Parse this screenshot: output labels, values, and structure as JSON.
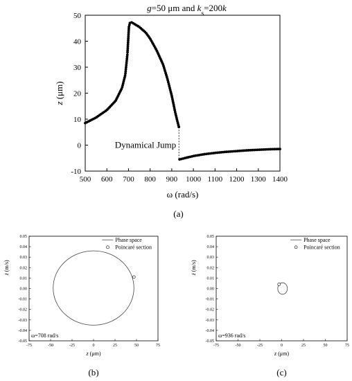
{
  "chart_data": [
    {
      "type": "scatter",
      "title_parts": [
        {
          "text": "g",
          "italic": true
        },
        {
          "text": "=50 μm and ",
          "italic": false
        },
        {
          "text": "k",
          "italic": true
        },
        {
          "text": "s",
          "italic": false,
          "sub": true
        },
        {
          "text": "=200",
          "italic": false
        },
        {
          "text": "k",
          "italic": true
        }
      ],
      "xlabel": "ω (rad/s)",
      "ylabel_parts": [
        {
          "text": "z",
          "italic": true
        },
        {
          "text": " (μm)",
          "italic": false
        }
      ],
      "xlim": [
        500,
        1400
      ],
      "ylim": [
        -10,
        50
      ],
      "xticks": [
        "500",
        "600",
        "700",
        "800",
        "900",
        "1000",
        "1100",
        "1200",
        "1300",
        "1400"
      ],
      "yticks": [
        "-10",
        "0",
        "10",
        "20",
        "30",
        "40",
        "50"
      ],
      "marker": "filled-circle",
      "series": [
        {
          "name": "",
          "points": [
            [
              500,
              8.5
            ],
            [
              550,
              10.6
            ],
            [
              600,
              13.5
            ],
            [
              640,
              17.0
            ],
            [
              670,
              22.0
            ],
            [
              685,
              27.0
            ],
            [
              695,
              35.0
            ],
            [
              702,
              45.5
            ],
            [
              708,
              47.5
            ],
            [
              720,
              47.0
            ],
            [
              750,
              45.5
            ],
            [
              780,
              43.3
            ],
            [
              800,
              41.0
            ],
            [
              830,
              36.5
            ],
            [
              860,
              31.0
            ],
            [
              880,
              25.5
            ],
            [
              900,
              19.0
            ],
            [
              915,
              13.0
            ],
            [
              925,
              9.5
            ],
            [
              933,
              7.0
            ]
          ]
        },
        {
          "name": "",
          "points": [
            [
              936,
              -5.5
            ],
            [
              960,
              -5.0
            ],
            [
              1000,
              -4.2
            ],
            [
              1050,
              -3.5
            ],
            [
              1100,
              -3.0
            ],
            [
              1150,
              -2.6
            ],
            [
              1200,
              -2.3
            ],
            [
              1250,
              -2.0
            ],
            [
              1300,
              -1.8
            ],
            [
              1350,
              -1.6
            ],
            [
              1400,
              -1.5
            ]
          ]
        }
      ],
      "jump": {
        "x": 933,
        "from": 7.0,
        "to": -5.5,
        "label": "Dynamical Jump"
      },
      "caption": "(a)"
    },
    {
      "type": "line",
      "xlabel_parts": [
        {
          "text": "z",
          "italic": true
        },
        {
          "text": " (μm)",
          "italic": false
        }
      ],
      "ylabel": "ż (m/s)",
      "xlim": [
        -75,
        75
      ],
      "ylim": [
        -0.05,
        0.05
      ],
      "xticks": [
        "-75",
        "-50",
        "-25",
        "0",
        "25",
        "50",
        "75"
      ],
      "yticks": [
        "-0.05",
        "-0.04",
        "-0.03",
        "-0.02",
        "-0.01",
        "0.00",
        "0.01",
        "0.02",
        "0.03",
        "0.04",
        "0.05"
      ],
      "legend_position": "top-right",
      "orbit": {
        "center": [
          0,
          0.0005
        ],
        "rx": 47,
        "ry": 0.0355
      },
      "poincare_points": [
        [
          47,
          0.011
        ]
      ],
      "legend": [
        "Phase space",
        "Poincaré section"
      ],
      "annotation": "ω=708 rad/s",
      "caption": "(b)"
    },
    {
      "type": "line",
      "xlabel_parts": [
        {
          "text": "z",
          "italic": true
        },
        {
          "text": " (μm)",
          "italic": false
        }
      ],
      "ylabel": "ż (m/s)",
      "xlim": [
        -75,
        75
      ],
      "ylim": [
        -0.05,
        0.05
      ],
      "xticks": [
        "-75",
        "-50",
        "-25",
        "0",
        "25",
        "50",
        "75"
      ],
      "yticks": [
        "-0.05",
        "-0.04",
        "-0.03",
        "-0.02",
        "-0.01",
        "0.00",
        "0.01",
        "0.02",
        "0.03",
        "0.04",
        "0.05"
      ],
      "legend_position": "top-right",
      "orbit": {
        "center": [
          1,
          0.0
        ],
        "rx": 5.5,
        "ry": 0.0055
      },
      "poincare_points": [
        [
          -3,
          0.004
        ]
      ],
      "legend": [
        "Phase space",
        "Poincaré section"
      ],
      "annotation": "ω=936 rad/s",
      "caption": "(c)"
    }
  ]
}
